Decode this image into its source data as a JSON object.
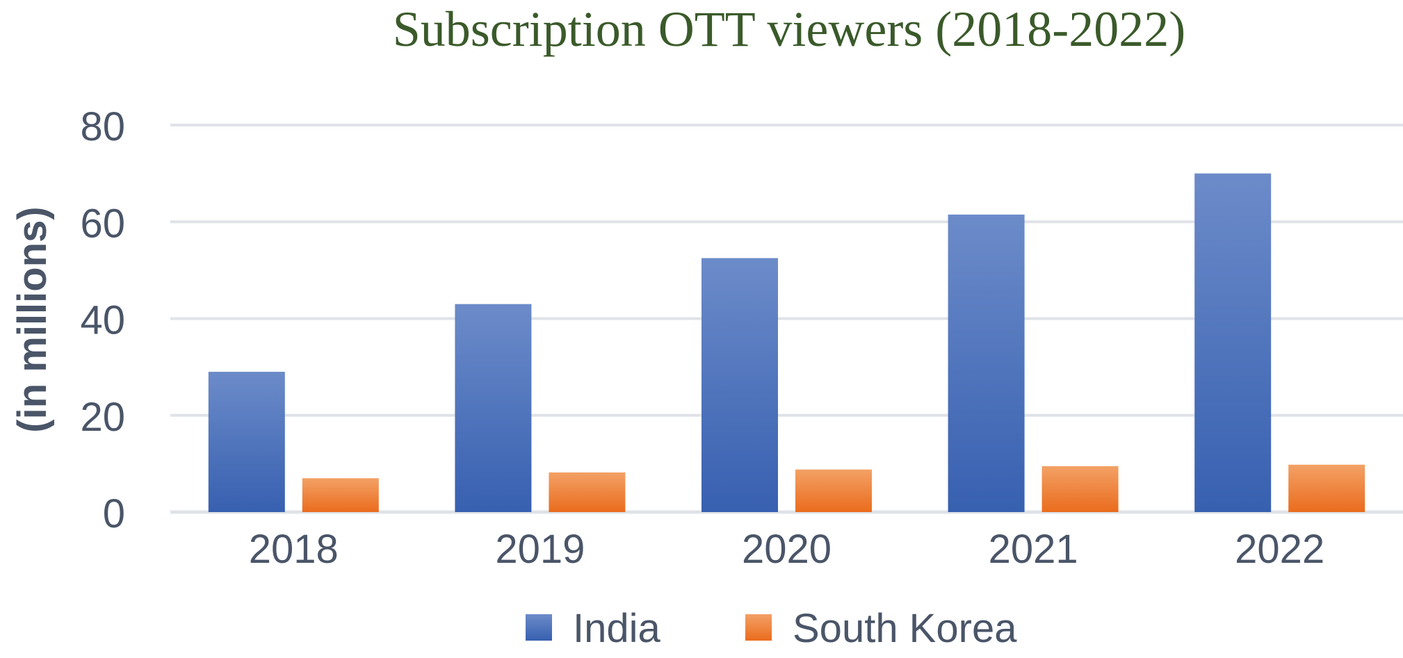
{
  "colors": {
    "title": "#3a5a2a",
    "axis_text": "#4a5568",
    "grid": "#dfe3e8",
    "india_top": "#6c8bc9",
    "india_bottom": "#3760b0",
    "korea_top": "#f3a166",
    "korea_bottom": "#ea6c1d"
  },
  "chart_data": {
    "type": "bar",
    "title": "Subscription OTT viewers (2018-2022)",
    "xlabel": "",
    "ylabel": "(in millions)",
    "categories": [
      "2018",
      "2019",
      "2020",
      "2021",
      "2022"
    ],
    "yticks": [
      "0",
      "20",
      "40",
      "60",
      "80"
    ],
    "ylim": [
      0,
      80
    ],
    "grid": true,
    "legend_position": "bottom",
    "series": [
      {
        "name": "India",
        "values": [
          29,
          43,
          52.5,
          61.5,
          70
        ]
      },
      {
        "name": "South Korea",
        "values": [
          7,
          8.2,
          8.8,
          9.5,
          9.8
        ]
      }
    ]
  }
}
